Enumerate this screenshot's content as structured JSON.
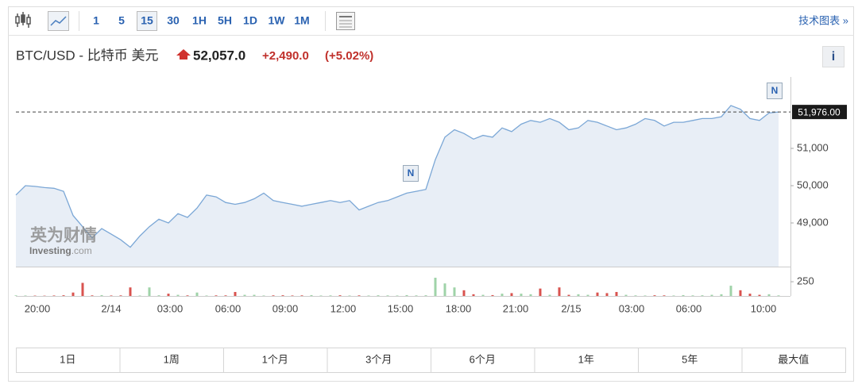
{
  "toolbar": {
    "intervals": [
      "1",
      "5",
      "15",
      "30",
      "1H",
      "5H",
      "1D",
      "1W",
      "1M"
    ],
    "active": "15",
    "link": "技术图表 »"
  },
  "header": {
    "symbol": "BTC/USD - 比特币 美元",
    "price": "52,057.0",
    "change": "+2,490.0",
    "change_pct": "(+5.02%)",
    "info": "i"
  },
  "watermark": {
    "brand": "英为财情",
    "site": "Investing",
    "domain": ".com"
  },
  "chart_data": {
    "type": "line",
    "values": [
      49750,
      50000,
      49980,
      49950,
      49930,
      49850,
      49200,
      48900,
      48600,
      48850,
      48700,
      48550,
      48350,
      48650,
      48900,
      49100,
      49000,
      49250,
      49150,
      49400,
      49750,
      49700,
      49550,
      49500,
      49550,
      49650,
      49800,
      49600,
      49550,
      49500,
      49450,
      49500,
      49550,
      49600,
      49550,
      49600,
      49350,
      49450,
      49550,
      49600,
      49700,
      49800,
      49850,
      49900,
      50700,
      51300,
      51500,
      51400,
      51250,
      51350,
      51300,
      51550,
      51450,
      51650,
      51750,
      51700,
      51800,
      51700,
      51500,
      51550,
      51750,
      51700,
      51600,
      51500,
      51550,
      51650,
      51800,
      51750,
      51600,
      51700,
      51700,
      51750,
      51800,
      51800,
      51850,
      52150,
      52050,
      51800,
      51750,
      51950,
      51976
    ],
    "volume": [
      10,
      8,
      6,
      5,
      8,
      12,
      60,
      230,
      10,
      15,
      8,
      10,
      150,
      8,
      150,
      12,
      40,
      20,
      10,
      60,
      8,
      10,
      10,
      70,
      20,
      20,
      8,
      10,
      12,
      8,
      10,
      15,
      8,
      10,
      12,
      8,
      10,
      8,
      12,
      10,
      8,
      15,
      10,
      12,
      320,
      220,
      150,
      100,
      30,
      20,
      15,
      40,
      50,
      40,
      30,
      130,
      20,
      150,
      20,
      30,
      20,
      60,
      50,
      70,
      20,
      10,
      8,
      12,
      10,
      8,
      15,
      10,
      12,
      20,
      30,
      180,
      100,
      40,
      20,
      30,
      10
    ],
    "xtick_labels": [
      "20:00",
      "2/14",
      "03:00",
      "06:00",
      "09:00",
      "12:00",
      "15:00",
      "18:00",
      "21:00",
      "2/15",
      "03:00",
      "06:00",
      "10:00"
    ],
    "ylim": [
      47830,
      52915
    ],
    "yticks": [
      {
        "value": 49000,
        "label": "49,000"
      },
      {
        "value": 50000,
        "label": "50,000"
      },
      {
        "value": 51000,
        "label": "51,000"
      }
    ],
    "current": {
      "value": 51976,
      "label": "51,976.00"
    },
    "volume_ylim": [
      0,
      460
    ],
    "volume_ticks": [
      250
    ],
    "annotations": [
      "N",
      "N"
    ],
    "line_color": "#7ba7d6",
    "fill_color": "#e8eef6",
    "volume_up_color": "#9fd3a8",
    "volume_down_color": "#d9534f"
  },
  "ranges": [
    "1日",
    "1周",
    "1个月",
    "3个月",
    "6个月",
    "1年",
    "5年",
    "最大值"
  ]
}
